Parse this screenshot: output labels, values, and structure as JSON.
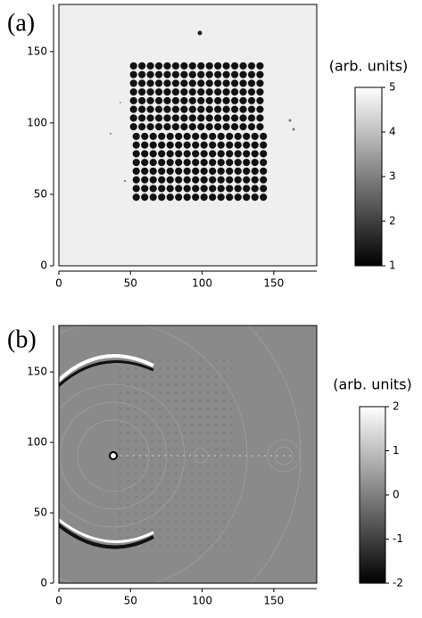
{
  "chart_data": [
    {
      "type": "image",
      "panel_label": "(a)",
      "xlim": [
        0,
        180
      ],
      "ylim": [
        0,
        183
      ],
      "xticks": [
        0,
        50,
        100,
        150
      ],
      "yticks": [
        0,
        50,
        100,
        150
      ],
      "colorbar": {
        "label": "(arb. units)",
        "lim": [
          1,
          5
        ],
        "ticks": [
          1,
          2,
          3,
          4,
          5
        ]
      }
    },
    {
      "type": "image",
      "panel_label": "(b)",
      "xlim": [
        0,
        180
      ],
      "ylim": [
        0,
        183
      ],
      "xticks": [
        0,
        50,
        100,
        150
      ],
      "yticks": [
        0,
        50,
        100,
        150
      ],
      "colorbar": {
        "label": "(arb. units)",
        "lim": [
          -2,
          2
        ],
        "ticks": [
          -2,
          -1,
          0,
          1,
          2
        ]
      }
    }
  ]
}
